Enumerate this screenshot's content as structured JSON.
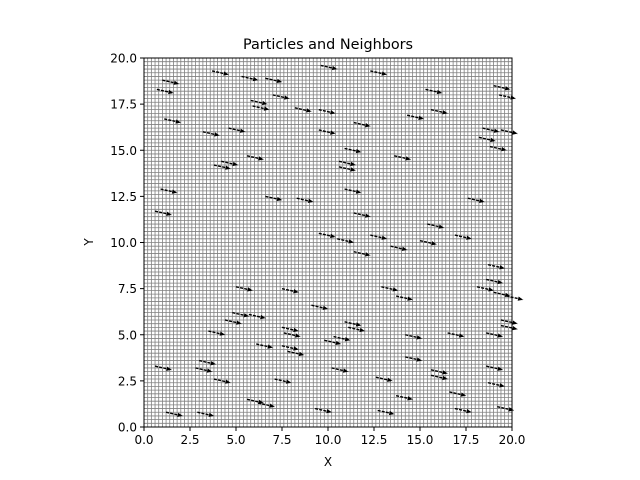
{
  "chart_data": {
    "type": "scatter",
    "title": "Particles and Neighbors",
    "xlabel": "X",
    "ylabel": "Y",
    "xlim": [
      0,
      20
    ],
    "ylim": [
      0,
      20
    ],
    "x_ticks": [
      0.0,
      2.5,
      5.0,
      7.5,
      10.0,
      12.5,
      15.0,
      17.5,
      20.0
    ],
    "y_ticks": [
      0.0,
      2.5,
      5.0,
      7.5,
      10.0,
      12.5,
      15.0,
      17.5,
      20.0
    ],
    "x_tick_labels": [
      "0.0",
      "2.5",
      "5.0",
      "7.5",
      "10.0",
      "12.5",
      "15.0",
      "17.5",
      "20.0"
    ],
    "y_tick_labels": [
      "0.0",
      "2.5",
      "5.0",
      "7.5",
      "10.0",
      "12.5",
      "15.0",
      "17.5",
      "20.0"
    ],
    "grid": true,
    "grid_spacing": 0.2,
    "colors": {
      "grid": "#808080",
      "particles": "#000000",
      "axes": "#000000"
    },
    "particle_direction": {
      "dx": 0.9,
      "dy": -0.2
    },
    "particles": [
      {
        "x": 1.0,
        "y": 18.8
      },
      {
        "x": 0.7,
        "y": 18.3
      },
      {
        "x": 3.7,
        "y": 19.3
      },
      {
        "x": 5.3,
        "y": 19.0
      },
      {
        "x": 6.6,
        "y": 18.9
      },
      {
        "x": 9.6,
        "y": 19.6
      },
      {
        "x": 12.3,
        "y": 19.3
      },
      {
        "x": 19.0,
        "y": 18.5
      },
      {
        "x": 15.3,
        "y": 18.3
      },
      {
        "x": 7.0,
        "y": 18.0
      },
      {
        "x": 5.8,
        "y": 17.7
      },
      {
        "x": 5.9,
        "y": 17.4
      },
      {
        "x": 19.3,
        "y": 18.0
      },
      {
        "x": 8.2,
        "y": 17.3
      },
      {
        "x": 9.5,
        "y": 17.2
      },
      {
        "x": 15.6,
        "y": 17.2
      },
      {
        "x": 14.3,
        "y": 16.9
      },
      {
        "x": 1.1,
        "y": 16.7
      },
      {
        "x": 11.4,
        "y": 16.5
      },
      {
        "x": 4.6,
        "y": 16.2
      },
      {
        "x": 3.2,
        "y": 16.0
      },
      {
        "x": 9.5,
        "y": 16.1
      },
      {
        "x": 18.4,
        "y": 16.2
      },
      {
        "x": 19.4,
        "y": 16.1
      },
      {
        "x": 18.2,
        "y": 15.7
      },
      {
        "x": 18.8,
        "y": 15.2
      },
      {
        "x": 10.9,
        "y": 15.1
      },
      {
        "x": 5.6,
        "y": 14.7
      },
      {
        "x": 13.6,
        "y": 14.7
      },
      {
        "x": 4.2,
        "y": 14.4
      },
      {
        "x": 3.8,
        "y": 14.2
      },
      {
        "x": 10.6,
        "y": 14.4
      },
      {
        "x": 10.6,
        "y": 14.1
      },
      {
        "x": 0.9,
        "y": 12.9
      },
      {
        "x": 10.9,
        "y": 12.9
      },
      {
        "x": 6.6,
        "y": 12.5
      },
      {
        "x": 8.3,
        "y": 12.4
      },
      {
        "x": 17.6,
        "y": 12.4
      },
      {
        "x": 0.6,
        "y": 11.7
      },
      {
        "x": 11.4,
        "y": 11.6
      },
      {
        "x": 15.4,
        "y": 11.0
      },
      {
        "x": 9.5,
        "y": 10.5
      },
      {
        "x": 10.5,
        "y": 10.2
      },
      {
        "x": 12.3,
        "y": 10.4
      },
      {
        "x": 16.9,
        "y": 10.4
      },
      {
        "x": 15.0,
        "y": 10.1
      },
      {
        "x": 13.4,
        "y": 9.8
      },
      {
        "x": 11.4,
        "y": 9.5
      },
      {
        "x": 18.7,
        "y": 8.8
      },
      {
        "x": 18.6,
        "y": 8.0
      },
      {
        "x": 5.0,
        "y": 7.6
      },
      {
        "x": 7.5,
        "y": 7.5
      },
      {
        "x": 12.9,
        "y": 7.6
      },
      {
        "x": 18.1,
        "y": 7.6
      },
      {
        "x": 13.7,
        "y": 7.1
      },
      {
        "x": 19.0,
        "y": 7.3
      },
      {
        "x": 19.7,
        "y": 7.1
      },
      {
        "x": 9.1,
        "y": 6.6
      },
      {
        "x": 4.8,
        "y": 6.2
      },
      {
        "x": 5.7,
        "y": 6.1
      },
      {
        "x": 4.4,
        "y": 5.8
      },
      {
        "x": 10.9,
        "y": 5.7
      },
      {
        "x": 19.4,
        "y": 5.8
      },
      {
        "x": 19.4,
        "y": 5.5
      },
      {
        "x": 7.5,
        "y": 5.4
      },
      {
        "x": 11.1,
        "y": 5.4
      },
      {
        "x": 3.5,
        "y": 5.2
      },
      {
        "x": 7.6,
        "y": 5.1
      },
      {
        "x": 16.5,
        "y": 5.1
      },
      {
        "x": 18.6,
        "y": 5.1
      },
      {
        "x": 14.2,
        "y": 5.0
      },
      {
        "x": 10.3,
        "y": 4.9
      },
      {
        "x": 9.8,
        "y": 4.7
      },
      {
        "x": 6.1,
        "y": 4.5
      },
      {
        "x": 7.5,
        "y": 4.4
      },
      {
        "x": 7.8,
        "y": 4.1
      },
      {
        "x": 3.0,
        "y": 3.6
      },
      {
        "x": 14.2,
        "y": 3.8
      },
      {
        "x": 0.6,
        "y": 3.3
      },
      {
        "x": 2.8,
        "y": 3.2
      },
      {
        "x": 10.2,
        "y": 3.2
      },
      {
        "x": 15.6,
        "y": 3.1
      },
      {
        "x": 18.6,
        "y": 3.3
      },
      {
        "x": 15.6,
        "y": 2.8
      },
      {
        "x": 3.8,
        "y": 2.6
      },
      {
        "x": 7.1,
        "y": 2.6
      },
      {
        "x": 12.6,
        "y": 2.7
      },
      {
        "x": 18.7,
        "y": 2.4
      },
      {
        "x": 16.6,
        "y": 1.9
      },
      {
        "x": 13.7,
        "y": 1.7
      },
      {
        "x": 5.6,
        "y": 1.5
      },
      {
        "x": 6.2,
        "y": 1.3
      },
      {
        "x": 9.3,
        "y": 1.0
      },
      {
        "x": 12.7,
        "y": 0.9
      },
      {
        "x": 16.9,
        "y": 1.0
      },
      {
        "x": 19.2,
        "y": 1.1
      },
      {
        "x": 1.2,
        "y": 0.8
      },
      {
        "x": 2.9,
        "y": 0.8
      }
    ]
  }
}
